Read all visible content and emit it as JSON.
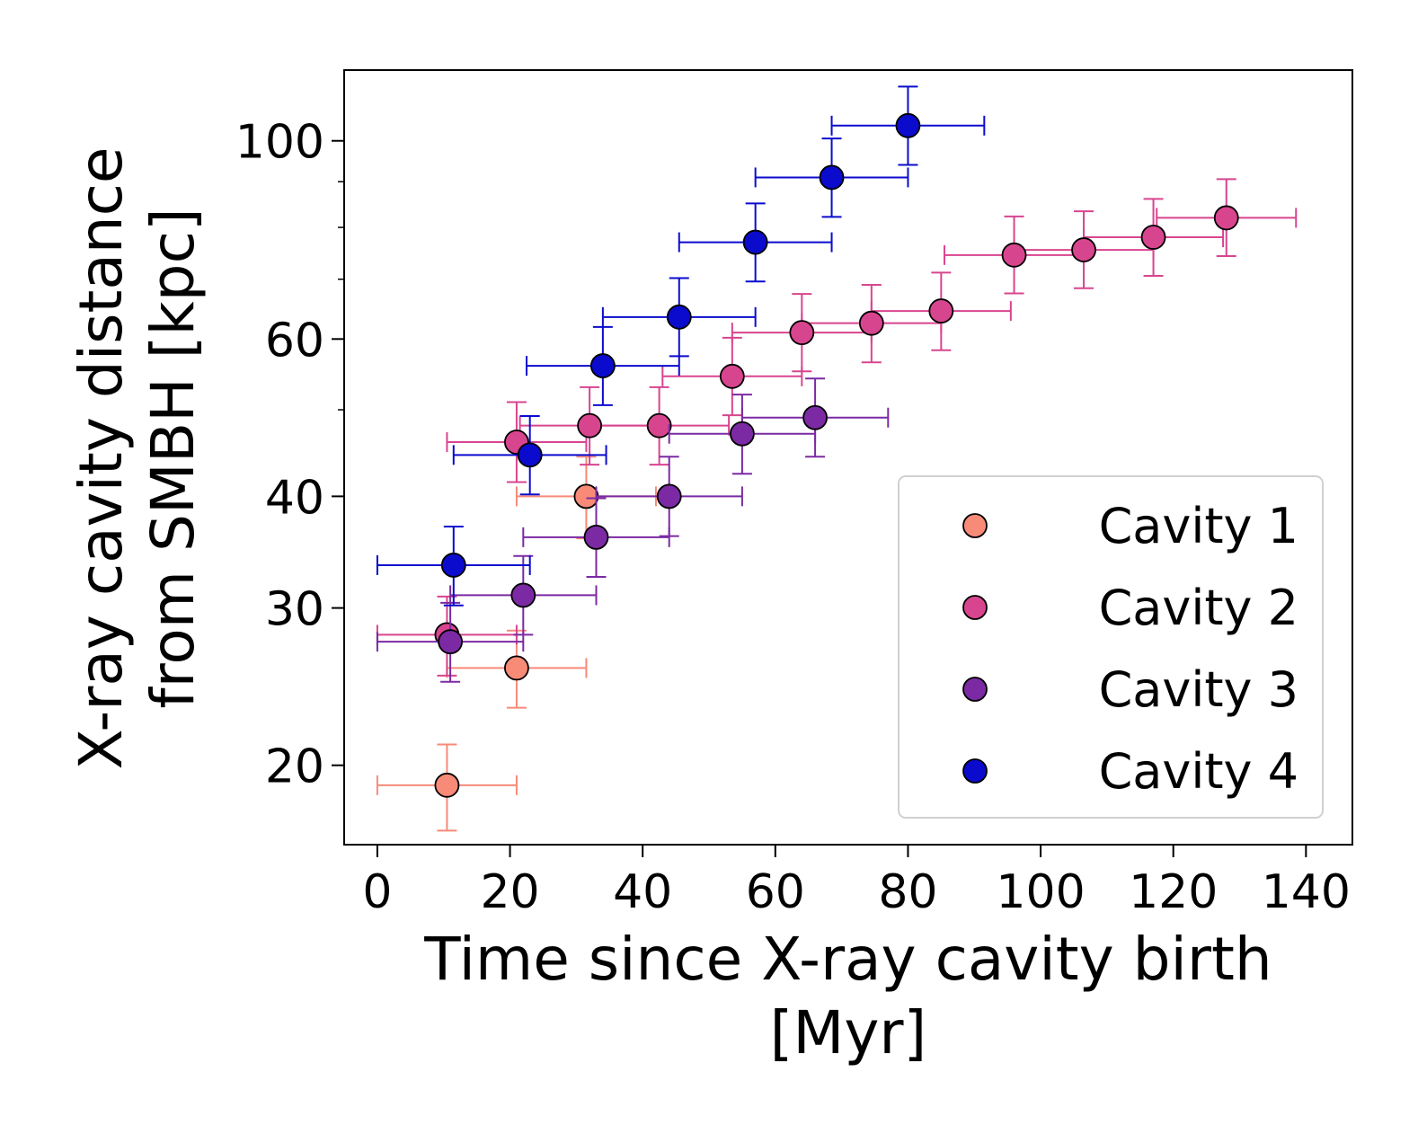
{
  "chart_data": {
    "type": "scatter",
    "title": "",
    "xlabel_lines": [
      "Time since X-ray cavity birth",
      "[Myr]"
    ],
    "ylabel_lines": [
      "X-ray cavity distance",
      "from SMBH [kpc]"
    ],
    "xlim": [
      -5,
      147
    ],
    "ylim": [
      16.3,
      120
    ],
    "yscale": "log",
    "x_ticks": [
      0,
      20,
      40,
      60,
      80,
      100,
      120,
      140
    ],
    "x_tick_labels": [
      "0",
      "20",
      "40",
      "60",
      "80",
      "100",
      "120",
      "140"
    ],
    "y_ticks": [
      20,
      30,
      40,
      60,
      100
    ],
    "y_tick_labels": [
      "20",
      "30",
      "40",
      "60",
      "100"
    ],
    "y_minor_ticks": [
      50,
      70,
      80,
      90
    ],
    "legend_position": "lower-right",
    "series": [
      {
        "name": "Cavity 1",
        "label": "Cavity 1",
        "color": "#f88a78",
        "x": [
          10.5,
          21,
          31.5
        ],
        "y": [
          19,
          25.7,
          40
        ],
        "xerr": [
          10.5,
          10.5,
          10.5
        ],
        "ylo": [
          16.9,
          23.2,
          35.9
        ],
        "yhi": [
          21.1,
          28.3,
          44.3
        ]
      },
      {
        "name": "Cavity 2",
        "label": "Cavity 2",
        "color": "#d8458f",
        "x": [
          10.5,
          21,
          32,
          42.5,
          53.5,
          64,
          74.5,
          85,
          96,
          106.5,
          117,
          128
        ],
        "y": [
          28,
          46,
          48,
          48,
          54.5,
          61,
          62.5,
          64.5,
          74.5,
          75.5,
          78,
          82
        ],
        "xerr": [
          10.5,
          10.5,
          10.5,
          10.5,
          10.5,
          10.5,
          10.5,
          10.5,
          10.5,
          10.5,
          10.5,
          10.5
        ],
        "ylo": [
          25.2,
          41.5,
          43.4,
          43.4,
          49.3,
          55.2,
          56.5,
          58.3,
          67.5,
          68.4,
          70.6,
          74.3
        ],
        "yhi": [
          30.9,
          51,
          53,
          53,
          60.2,
          67.4,
          69,
          71.2,
          82.3,
          83.4,
          86.1,
          90.6
        ]
      },
      {
        "name": "Cavity 3",
        "label": "Cavity 3",
        "color": "#7b2aa3",
        "x": [
          11,
          22,
          33,
          44,
          55,
          66
        ],
        "y": [
          27.5,
          31,
          36,
          40,
          47,
          49
        ],
        "xerr": [
          11,
          11,
          11,
          11,
          11,
          11
        ],
        "ylo": [
          24.8,
          28,
          32.5,
          36.1,
          42.4,
          44.3
        ],
        "yhi": [
          30.4,
          34.3,
          39.8,
          44.3,
          52,
          54.2
        ]
      },
      {
        "name": "Cavity 4",
        "label": "Cavity 4",
        "color": "#0b0bce",
        "x": [
          11.5,
          23,
          34,
          45.5,
          57,
          68.5,
          80
        ],
        "y": [
          33.5,
          44.5,
          56,
          63.5,
          77,
          91,
          104
        ],
        "xerr": [
          11.5,
          11.5,
          11.5,
          11.5,
          11.5,
          11.5,
          11.5
        ],
        "ylo": [
          30.2,
          40.2,
          50.6,
          57.4,
          69.6,
          82.2,
          94
        ],
        "yhi": [
          37,
          49.2,
          61.9,
          70.2,
          85.1,
          100.6,
          115
        ]
      }
    ]
  }
}
